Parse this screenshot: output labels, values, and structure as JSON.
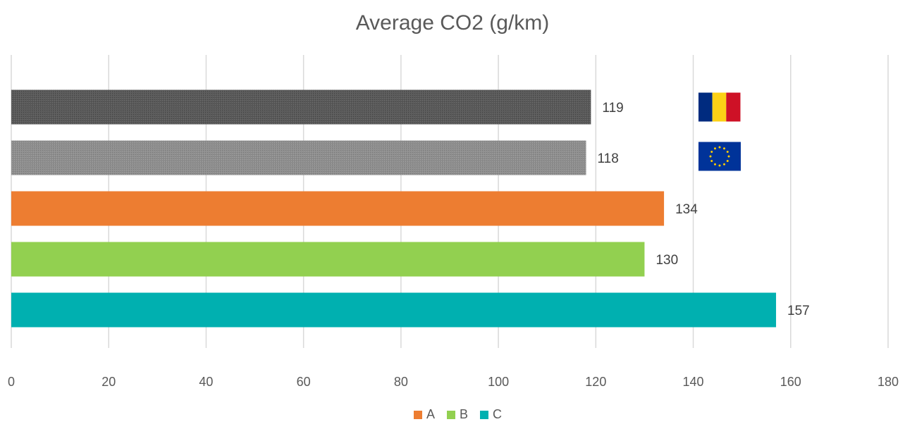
{
  "chart_data": {
    "type": "bar",
    "orientation": "horizontal",
    "title": "Average CO2 (g/km)",
    "xlabel": "",
    "ylabel": "",
    "xlim": [
      0,
      180
    ],
    "x_ticks": [
      0,
      20,
      40,
      60,
      80,
      100,
      120,
      140,
      160,
      180
    ],
    "grid": true,
    "legend_position": "bottom",
    "bars": [
      {
        "value": 119,
        "color": "#595959",
        "pattern": "dark-texture",
        "flag_icon": "romania-flag-icon"
      },
      {
        "value": 118,
        "color": "#8c8c8c",
        "pattern": "light-texture",
        "flag_icon": "eu-flag-icon"
      },
      {
        "value": 134,
        "color": "#ed7d31",
        "legend": "A"
      },
      {
        "value": 130,
        "color": "#92d050",
        "legend": "B"
      },
      {
        "value": 157,
        "color": "#00b0b0",
        "legend": "C"
      }
    ],
    "legend": [
      {
        "label": "A",
        "color": "#ed7d31"
      },
      {
        "label": "B",
        "color": "#92d050"
      },
      {
        "label": "C",
        "color": "#00b0b0"
      }
    ]
  }
}
